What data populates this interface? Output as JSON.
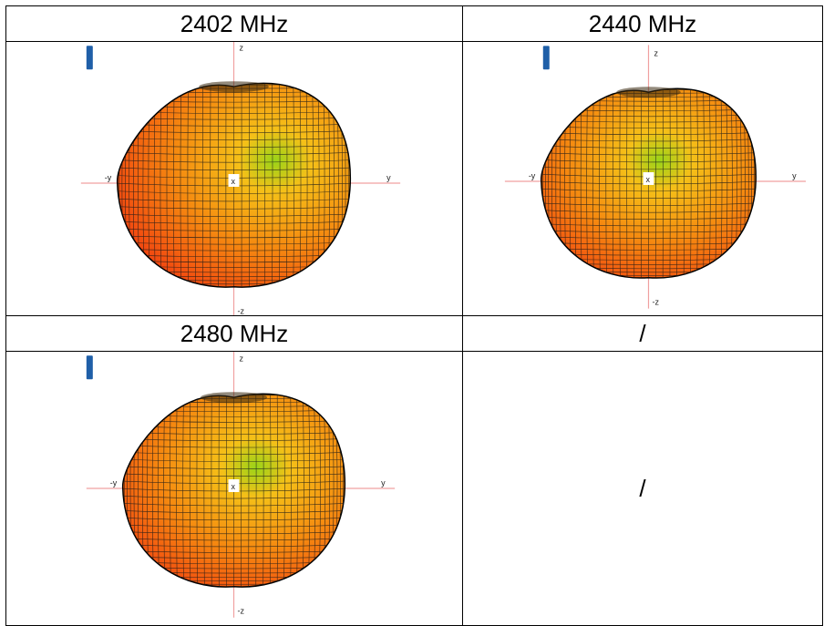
{
  "table": {
    "headers": [
      "2402 MHz",
      "2440 MHz",
      "2480 MHz",
      "/"
    ],
    "empty_cell_text": "/"
  },
  "axes": {
    "z": "z",
    "neg_z": "-z",
    "y": "y",
    "neg_y": "-y",
    "x": "x"
  },
  "colors": {
    "hot": "#f02a10",
    "mid": "#f58a10",
    "warm": "#f5c018",
    "cool": "#9ad418",
    "axis_line": "#f0a0a0",
    "marker": "#1f5fa8"
  }
}
